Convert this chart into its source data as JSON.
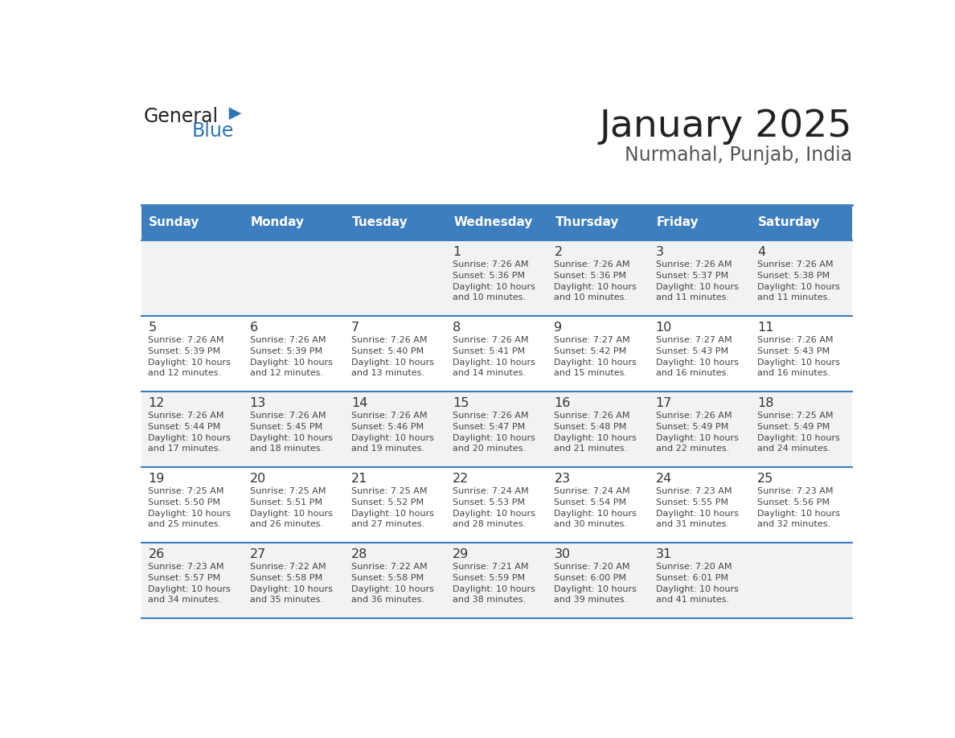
{
  "title": "January 2025",
  "subtitle": "Nurmahal, Punjab, India",
  "header_bg": "#3d7ebf",
  "header_text_color": "#ffffff",
  "cell_bg_odd": "#f2f2f2",
  "cell_bg_even": "#ffffff",
  "day_text_color": "#333333",
  "info_text_color": "#444444",
  "border_color": "#3d7ebf",
  "days_of_week": [
    "Sunday",
    "Monday",
    "Tuesday",
    "Wednesday",
    "Thursday",
    "Friday",
    "Saturday"
  ],
  "weeks": [
    [
      {
        "day": "",
        "info": ""
      },
      {
        "day": "",
        "info": ""
      },
      {
        "day": "",
        "info": ""
      },
      {
        "day": "1",
        "info": "Sunrise: 7:26 AM\nSunset: 5:36 PM\nDaylight: 10 hours\nand 10 minutes."
      },
      {
        "day": "2",
        "info": "Sunrise: 7:26 AM\nSunset: 5:36 PM\nDaylight: 10 hours\nand 10 minutes."
      },
      {
        "day": "3",
        "info": "Sunrise: 7:26 AM\nSunset: 5:37 PM\nDaylight: 10 hours\nand 11 minutes."
      },
      {
        "day": "4",
        "info": "Sunrise: 7:26 AM\nSunset: 5:38 PM\nDaylight: 10 hours\nand 11 minutes."
      }
    ],
    [
      {
        "day": "5",
        "info": "Sunrise: 7:26 AM\nSunset: 5:39 PM\nDaylight: 10 hours\nand 12 minutes."
      },
      {
        "day": "6",
        "info": "Sunrise: 7:26 AM\nSunset: 5:39 PM\nDaylight: 10 hours\nand 12 minutes."
      },
      {
        "day": "7",
        "info": "Sunrise: 7:26 AM\nSunset: 5:40 PM\nDaylight: 10 hours\nand 13 minutes."
      },
      {
        "day": "8",
        "info": "Sunrise: 7:26 AM\nSunset: 5:41 PM\nDaylight: 10 hours\nand 14 minutes."
      },
      {
        "day": "9",
        "info": "Sunrise: 7:27 AM\nSunset: 5:42 PM\nDaylight: 10 hours\nand 15 minutes."
      },
      {
        "day": "10",
        "info": "Sunrise: 7:27 AM\nSunset: 5:43 PM\nDaylight: 10 hours\nand 16 minutes."
      },
      {
        "day": "11",
        "info": "Sunrise: 7:26 AM\nSunset: 5:43 PM\nDaylight: 10 hours\nand 16 minutes."
      }
    ],
    [
      {
        "day": "12",
        "info": "Sunrise: 7:26 AM\nSunset: 5:44 PM\nDaylight: 10 hours\nand 17 minutes."
      },
      {
        "day": "13",
        "info": "Sunrise: 7:26 AM\nSunset: 5:45 PM\nDaylight: 10 hours\nand 18 minutes."
      },
      {
        "day": "14",
        "info": "Sunrise: 7:26 AM\nSunset: 5:46 PM\nDaylight: 10 hours\nand 19 minutes."
      },
      {
        "day": "15",
        "info": "Sunrise: 7:26 AM\nSunset: 5:47 PM\nDaylight: 10 hours\nand 20 minutes."
      },
      {
        "day": "16",
        "info": "Sunrise: 7:26 AM\nSunset: 5:48 PM\nDaylight: 10 hours\nand 21 minutes."
      },
      {
        "day": "17",
        "info": "Sunrise: 7:26 AM\nSunset: 5:49 PM\nDaylight: 10 hours\nand 22 minutes."
      },
      {
        "day": "18",
        "info": "Sunrise: 7:25 AM\nSunset: 5:49 PM\nDaylight: 10 hours\nand 24 minutes."
      }
    ],
    [
      {
        "day": "19",
        "info": "Sunrise: 7:25 AM\nSunset: 5:50 PM\nDaylight: 10 hours\nand 25 minutes."
      },
      {
        "day": "20",
        "info": "Sunrise: 7:25 AM\nSunset: 5:51 PM\nDaylight: 10 hours\nand 26 minutes."
      },
      {
        "day": "21",
        "info": "Sunrise: 7:25 AM\nSunset: 5:52 PM\nDaylight: 10 hours\nand 27 minutes."
      },
      {
        "day": "22",
        "info": "Sunrise: 7:24 AM\nSunset: 5:53 PM\nDaylight: 10 hours\nand 28 minutes."
      },
      {
        "day": "23",
        "info": "Sunrise: 7:24 AM\nSunset: 5:54 PM\nDaylight: 10 hours\nand 30 minutes."
      },
      {
        "day": "24",
        "info": "Sunrise: 7:23 AM\nSunset: 5:55 PM\nDaylight: 10 hours\nand 31 minutes."
      },
      {
        "day": "25",
        "info": "Sunrise: 7:23 AM\nSunset: 5:56 PM\nDaylight: 10 hours\nand 32 minutes."
      }
    ],
    [
      {
        "day": "26",
        "info": "Sunrise: 7:23 AM\nSunset: 5:57 PM\nDaylight: 10 hours\nand 34 minutes."
      },
      {
        "day": "27",
        "info": "Sunrise: 7:22 AM\nSunset: 5:58 PM\nDaylight: 10 hours\nand 35 minutes."
      },
      {
        "day": "28",
        "info": "Sunrise: 7:22 AM\nSunset: 5:58 PM\nDaylight: 10 hours\nand 36 minutes."
      },
      {
        "day": "29",
        "info": "Sunrise: 7:21 AM\nSunset: 5:59 PM\nDaylight: 10 hours\nand 38 minutes."
      },
      {
        "day": "30",
        "info": "Sunrise: 7:20 AM\nSunset: 6:00 PM\nDaylight: 10 hours\nand 39 minutes."
      },
      {
        "day": "31",
        "info": "Sunrise: 7:20 AM\nSunset: 6:01 PM\nDaylight: 10 hours\nand 41 minutes."
      },
      {
        "day": "",
        "info": ""
      }
    ]
  ],
  "logo_text_general": "General",
  "logo_text_blue": "Blue",
  "logo_triangle_color": "#2e75b6"
}
